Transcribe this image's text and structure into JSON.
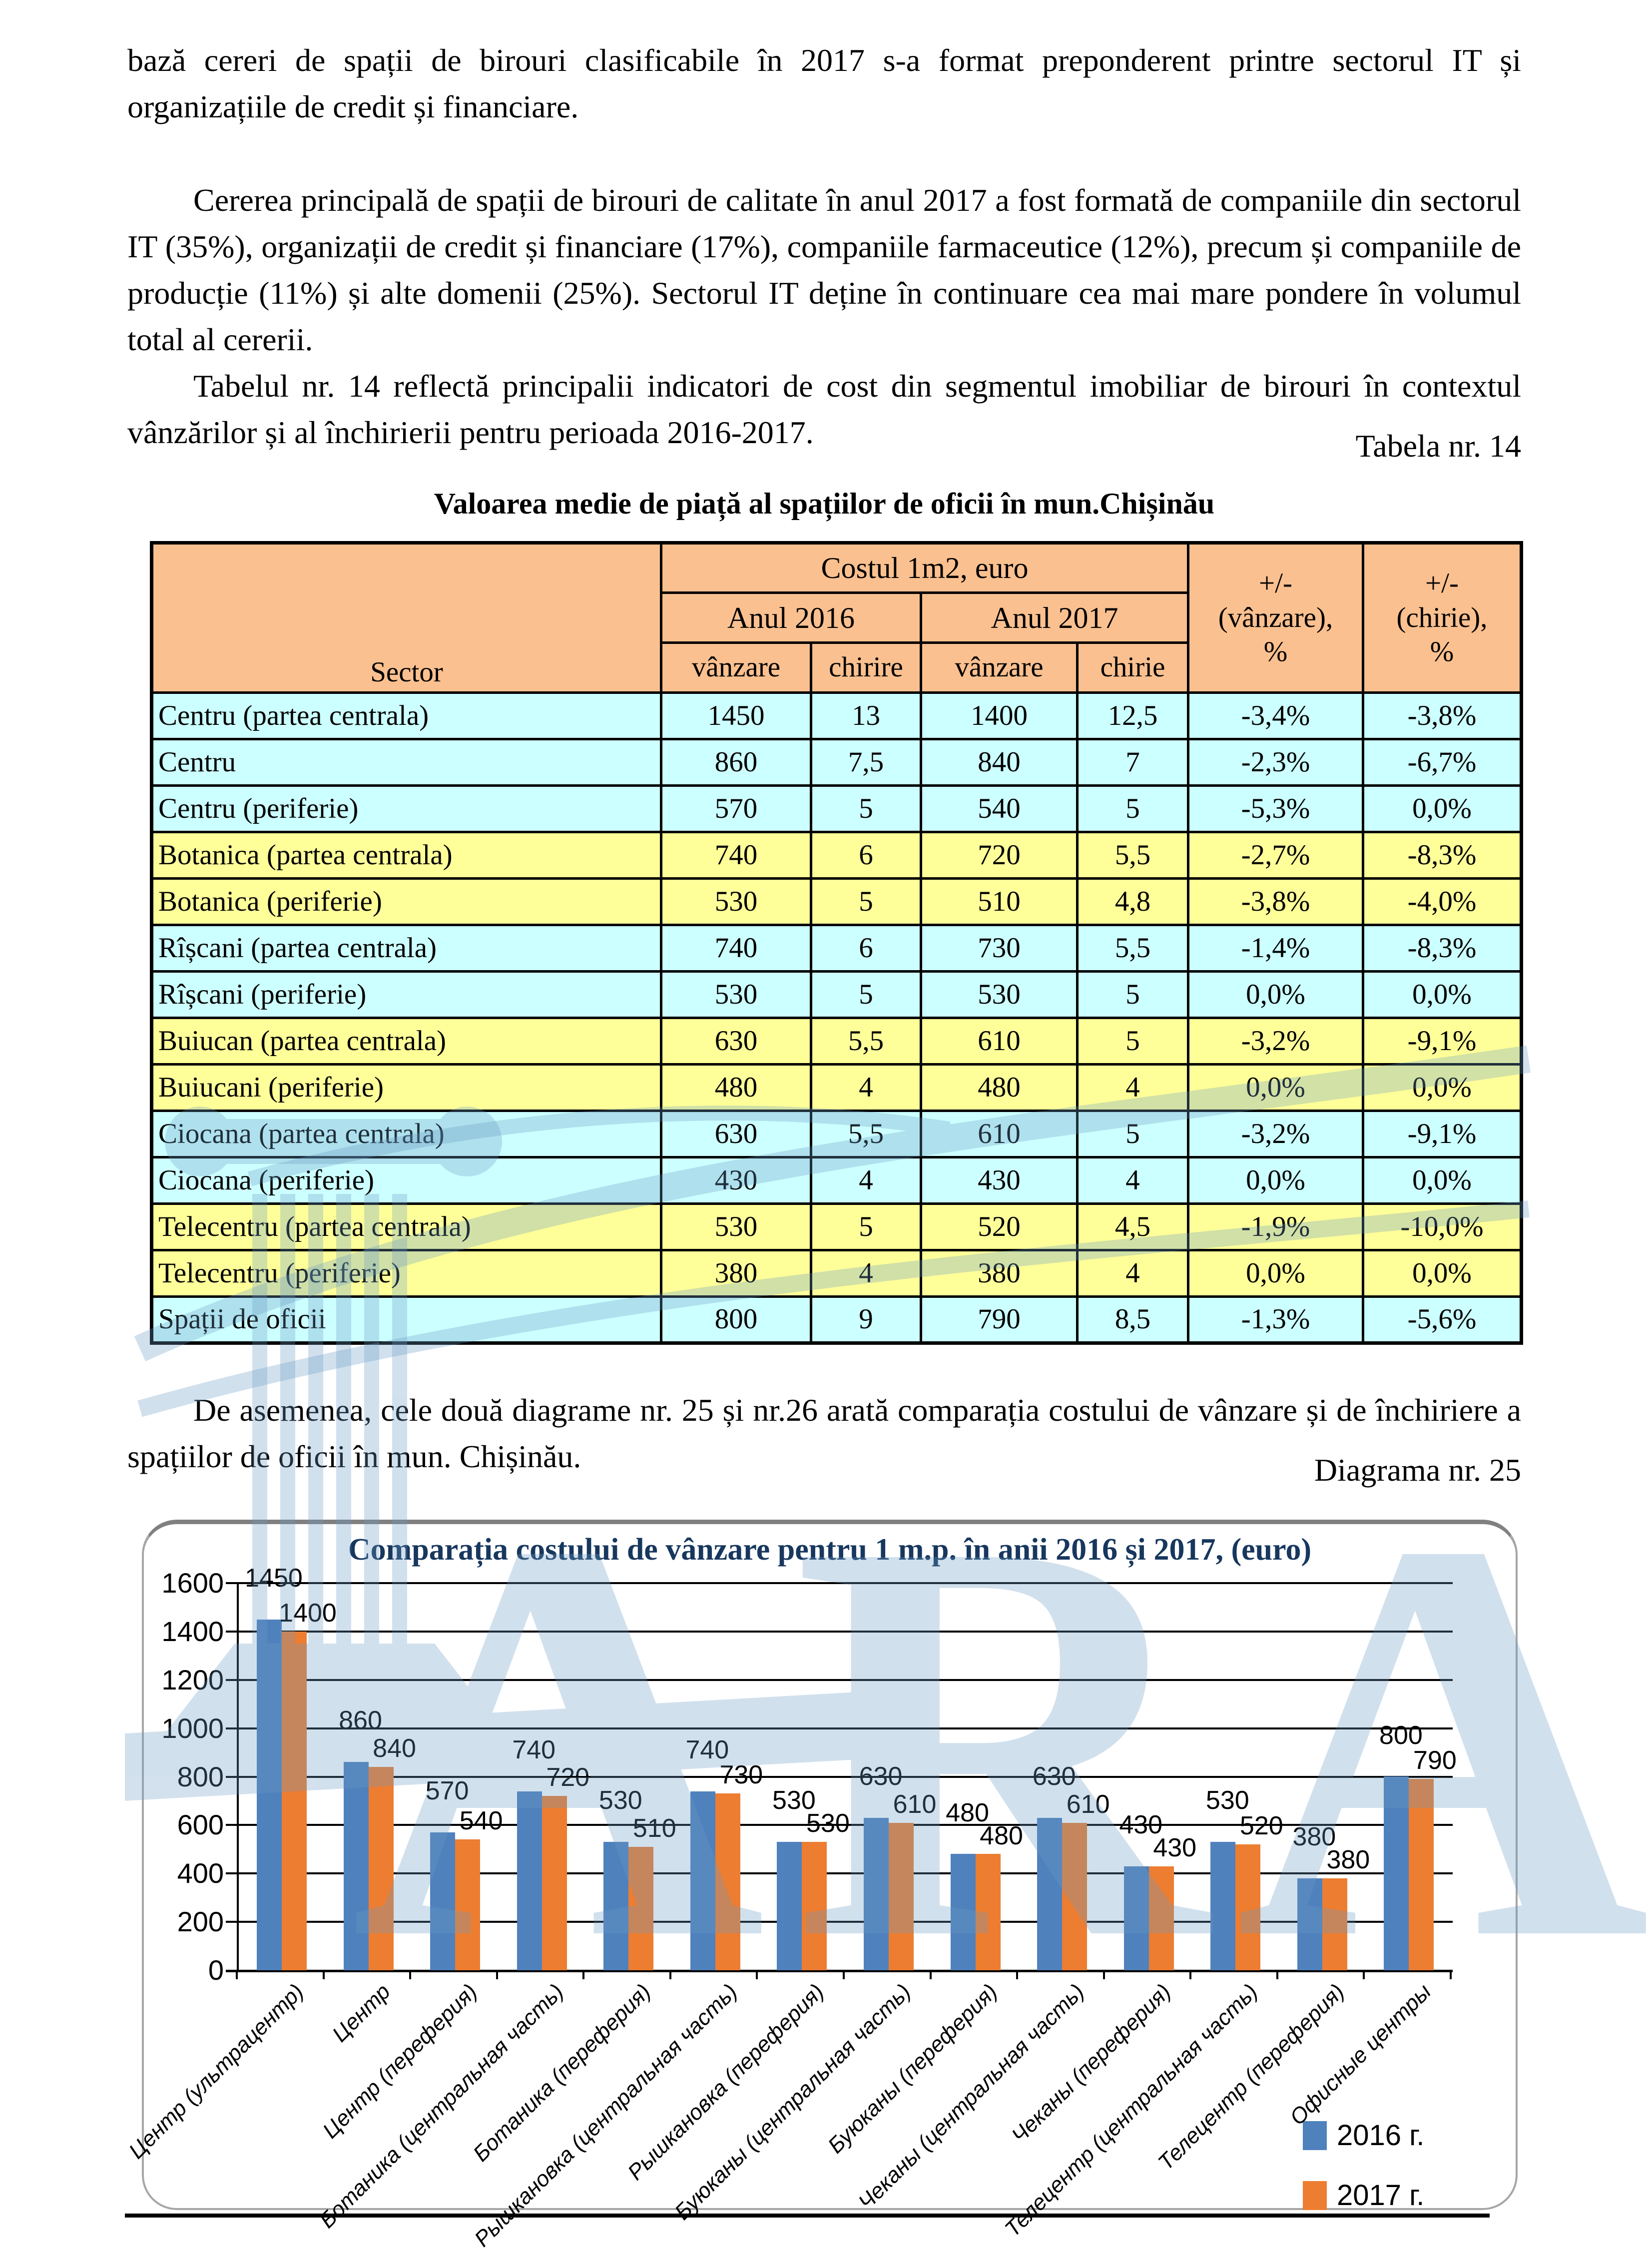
{
  "document": {
    "paragraph1": "bază  cereri de spații de birouri clasificabile în 2017 s-a format preponderent printre sectorul IT și organizațiile de credit și financiare.",
    "paragraph2": "Cererea principală de spații de birouri de calitate în anul 2017 a fost formată de companiile din sectorul IT (35%), organizații de credit și financiare (17%), companiile farmaceutice (12%), precum și companiile de producție (11%) și alte domenii (25%). Sectorul IT deține în continuare cea mai mare pondere în volumul total al cererii.",
    "paragraph3": "Tabelul nr. 14 reflectă principalii indicatori de cost din segmentul imobiliar de birouri în contextul vânzărilor și al închirierii pentru perioada 2016-2017.",
    "table_caption": "Tabela nr. 14",
    "table_title": "Valoarea medie de piață al spațiilor de oficii în mun.Chișinău",
    "paragraph4": "De asemenea, cele două diagrame nr. 25 și nr.26 arată comparația costului de vânzare și de închiriere a spațiilor de oficii în mun. Chișinău.",
    "diagram_caption": "Diagrama nr. 25",
    "watermark_letters": "ARA"
  },
  "table": {
    "headers": {
      "sector": "Sector",
      "cost_group": "Costul 1m2, euro",
      "year2016": "Anul 2016",
      "year2017": "Anul 2017",
      "sale2016": "vânzare",
      "rent2016": "chirire",
      "sale2017": "vânzare",
      "rent2017": "chirie",
      "delta_sale": "+/-\n(vânzare),\n%",
      "delta_rent": "+/-\n(chirie),\n%"
    },
    "rows": [
      {
        "sector": "Centru  (partea centrala)",
        "s2016": "1450",
        "r2016": "13",
        "s2017": "1400",
        "r2017": "12,5",
        "d_sale": "-3,4%",
        "d_rent": "-3,8%",
        "band": "cyan"
      },
      {
        "sector": "Centru",
        "s2016": "860",
        "r2016": "7,5",
        "s2017": "840",
        "r2017": "7",
        "d_sale": "-2,3%",
        "d_rent": "-6,7%",
        "band": "cyan"
      },
      {
        "sector": "Centru (periferie)",
        "s2016": "570",
        "r2016": "5",
        "s2017": "540",
        "r2017": "5",
        "d_sale": "-5,3%",
        "d_rent": "0,0%",
        "band": "cyan"
      },
      {
        "sector": "Botanica (partea centrala)",
        "s2016": "740",
        "r2016": "6",
        "s2017": "720",
        "r2017": "5,5",
        "d_sale": "-2,7%",
        "d_rent": "-8,3%",
        "band": "yellow"
      },
      {
        "sector": "Botanica (periferie)",
        "s2016": "530",
        "r2016": "5",
        "s2017": "510",
        "r2017": "4,8",
        "d_sale": "-3,8%",
        "d_rent": "-4,0%",
        "band": "yellow"
      },
      {
        "sector": "Rîșcani (partea centrala)",
        "s2016": "740",
        "r2016": "6",
        "s2017": "730",
        "r2017": "5,5",
        "d_sale": "-1,4%",
        "d_rent": "-8,3%",
        "band": "cyan"
      },
      {
        "sector": "Rîșcani (periferie)",
        "s2016": "530",
        "r2016": "5",
        "s2017": "530",
        "r2017": "5",
        "d_sale": "0,0%",
        "d_rent": "0,0%",
        "band": "cyan"
      },
      {
        "sector": "Buiucan (partea centrala)",
        "s2016": "630",
        "r2016": "5,5",
        "s2017": "610",
        "r2017": "5",
        "d_sale": "-3,2%",
        "d_rent": "-9,1%",
        "band": "yellow"
      },
      {
        "sector": "Buiucani (periferie)",
        "s2016": "480",
        "r2016": "4",
        "s2017": "480",
        "r2017": "4",
        "d_sale": "0,0%",
        "d_rent": "0,0%",
        "band": "yellow"
      },
      {
        "sector": "Ciocana (partea centrala)",
        "s2016": "630",
        "r2016": "5,5",
        "s2017": "610",
        "r2017": "5",
        "d_sale": "-3,2%",
        "d_rent": "-9,1%",
        "band": "cyan"
      },
      {
        "sector": "Ciocana (periferie)",
        "s2016": "430",
        "r2016": "4",
        "s2017": "430",
        "r2017": "4",
        "d_sale": "0,0%",
        "d_rent": "0,0%",
        "band": "cyan"
      },
      {
        "sector": "Telecentru (partea centrala)",
        "s2016": "530",
        "r2016": "5",
        "s2017": "520",
        "r2017": "4,5",
        "d_sale": "-1,9%",
        "d_rent": "-10,0%",
        "band": "yellow"
      },
      {
        "sector": "Telecentru (periferie)",
        "s2016": "380",
        "r2016": "4",
        "s2017": "380",
        "r2017": "4",
        "d_sale": "0,0%",
        "d_rent": "0,0%",
        "band": "yellow"
      },
      {
        "sector": "Spații de oficii",
        "s2016": "800",
        "r2016": "9",
        "s2017": "790",
        "r2017": "8,5",
        "d_sale": "-1,3%",
        "d_rent": "-5,6%",
        "band": "cyan"
      }
    ]
  },
  "chart_data": {
    "type": "bar",
    "title": "Comparația costului de vânzare pentru 1 m.p. în anii 2016 și 2017, (euro)",
    "xlabel": "",
    "ylabel": "",
    "ylim": [
      0,
      1600
    ],
    "ytick_step": 200,
    "grid": true,
    "legend_position": "bottom-right",
    "categories": [
      "Центр (ультрацентр)",
      "Центр",
      "Центр (переферия)",
      "Ботаника (центральная часть)",
      "Ботаника (переферия)",
      "Рышкановка (центральная часть)",
      "Рышкановка (переферия)",
      "Буюканы (центральная часть)",
      "Буюканы (переферия)",
      "Чеканы (центральная часть)",
      "Чеканы (переферия)",
      "Телецентр (центральная часть)",
      "Телецентр (переферия)",
      "Офисные центры"
    ],
    "series": [
      {
        "name": "2016 г.",
        "color": "#4F81BD",
        "values": [
          1450,
          860,
          570,
          740,
          530,
          740,
          530,
          630,
          480,
          630,
          430,
          530,
          380,
          800
        ]
      },
      {
        "name": "2017 г.",
        "color": "#ED7D31",
        "values": [
          1400,
          840,
          540,
          720,
          510,
          730,
          530,
          610,
          480,
          610,
          430,
          520,
          380,
          790
        ]
      }
    ]
  },
  "colors": {
    "table_header_bg": "#FAC08F",
    "row_band_cyan": "#CCFFFF",
    "row_band_yellow": "#FFFF99",
    "chart_title": "#17375E",
    "watermark": "#6A9CC4",
    "series_2016": "#4F81BD",
    "series_2017": "#ED7D31"
  }
}
